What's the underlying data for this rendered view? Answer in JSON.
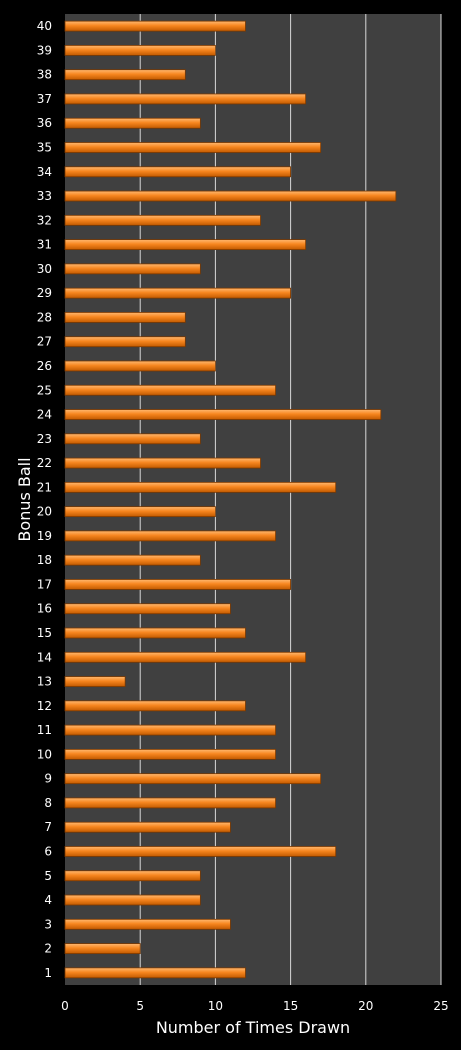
{
  "chart_data": {
    "type": "bar",
    "orientation": "horizontal",
    "categories": [
      "1",
      "2",
      "3",
      "4",
      "5",
      "6",
      "7",
      "8",
      "9",
      "10",
      "11",
      "12",
      "13",
      "14",
      "15",
      "16",
      "17",
      "18",
      "19",
      "20",
      "21",
      "22",
      "23",
      "24",
      "25",
      "26",
      "27",
      "28",
      "29",
      "30",
      "31",
      "32",
      "33",
      "34",
      "35",
      "36",
      "37",
      "38",
      "39",
      "40"
    ],
    "values": [
      12,
      5,
      11,
      9,
      9,
      18,
      11,
      14,
      17,
      14,
      14,
      12,
      4,
      16,
      12,
      11,
      15,
      9,
      14,
      10,
      18,
      13,
      9,
      21,
      14,
      10,
      8,
      8,
      15,
      9,
      16,
      13,
      22,
      15,
      17,
      9,
      16,
      8,
      10,
      12
    ],
    "title": "",
    "xlabel": "Number of Times Drawn",
    "ylabel": "Bonus Ball",
    "xlim": [
      0,
      25
    ],
    "xticks": [
      0,
      5,
      10,
      15,
      20,
      25
    ],
    "grid": true,
    "legend": "none",
    "colors": {
      "page_background": "#000000",
      "plot_background": "#404040",
      "gridline": "#d8d8d8",
      "bar_light": "#ffb870",
      "bar_mid": "#f7861f",
      "bar_dark": "#c25a00",
      "bar_edge": "#7a3800",
      "text": "#ffffff"
    }
  }
}
